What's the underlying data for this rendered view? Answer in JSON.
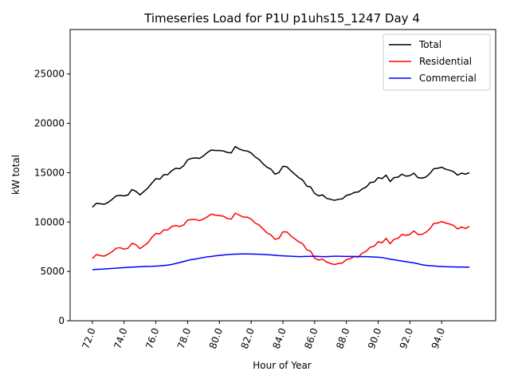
{
  "chart_data": {
    "type": "line",
    "title": "Timeseries Load for P1U p1uhs15_1247  Day 4",
    "xlabel": "Hour of Year",
    "ylabel": "kW total",
    "xlim": [
      70.6,
      97.4
    ],
    "ylim": [
      0,
      29500
    ],
    "xticks": [
      72,
      74,
      76,
      78,
      80,
      82,
      84,
      86,
      88,
      90,
      92,
      94
    ],
    "xtick_labels": [
      "72.0",
      "74.0",
      "76.0",
      "78.0",
      "80.0",
      "82.0",
      "84.0",
      "86.0",
      "88.0",
      "90.0",
      "92.0",
      "94.0"
    ],
    "yticks": [
      0,
      5000,
      10000,
      15000,
      20000,
      25000
    ],
    "ytick_labels": [
      "0",
      "5000",
      "10000",
      "15000",
      "20000",
      "25000"
    ],
    "grid": false,
    "legend_position": "top-right",
    "x": [
      72.0,
      72.25,
      72.5,
      72.75,
      73.0,
      73.25,
      73.5,
      73.75,
      74.0,
      74.25,
      74.5,
      74.75,
      75.0,
      75.25,
      75.5,
      75.75,
      76.0,
      76.25,
      76.5,
      76.75,
      77.0,
      77.25,
      77.5,
      77.75,
      78.0,
      78.25,
      78.5,
      78.75,
      79.0,
      79.25,
      79.5,
      79.75,
      80.0,
      80.25,
      80.5,
      80.75,
      81.0,
      81.25,
      81.5,
      81.75,
      82.0,
      82.25,
      82.5,
      82.75,
      83.0,
      83.25,
      83.5,
      83.75,
      84.0,
      84.25,
      84.5,
      84.75,
      85.0,
      85.25,
      85.5,
      85.75,
      86.0,
      86.25,
      86.5,
      86.75,
      87.0,
      87.25,
      87.5,
      87.75,
      88.0,
      88.25,
      88.5,
      88.75,
      89.0,
      89.25,
      89.5,
      89.75,
      90.0,
      90.25,
      90.5,
      90.75,
      91.0,
      91.25,
      91.5,
      91.75,
      92.0,
      92.25,
      92.5,
      92.75,
      93.0,
      93.25,
      93.5,
      93.75,
      94.0,
      94.25,
      94.5,
      94.75,
      95.0,
      95.25,
      95.5,
      95.75
    ],
    "series": [
      {
        "name": "Total",
        "color": "#000000",
        "values": [
          11500,
          11900,
          11850,
          11800,
          12000,
          12300,
          12650,
          12700,
          12650,
          12750,
          13300,
          13100,
          12750,
          13100,
          13450,
          13950,
          14400,
          14350,
          14800,
          14800,
          15200,
          15450,
          15400,
          15700,
          16300,
          16450,
          16500,
          16450,
          16700,
          17050,
          17300,
          17250,
          17250,
          17200,
          17050,
          17000,
          17650,
          17400,
          17250,
          17200,
          17000,
          16600,
          16350,
          15900,
          15550,
          15350,
          14850,
          15000,
          15650,
          15600,
          15200,
          14850,
          14500,
          14250,
          13650,
          13550,
          12900,
          12650,
          12750,
          12400,
          12300,
          12200,
          12300,
          12350,
          12700,
          12800,
          13000,
          13050,
          13350,
          13550,
          14000,
          14050,
          14500,
          14400,
          14750,
          14100,
          14500,
          14550,
          14850,
          14650,
          14700,
          14950,
          14500,
          14450,
          14550,
          14900,
          15400,
          15450,
          15550,
          15350,
          15250,
          15100,
          14750,
          14950,
          14850,
          15000
        ]
      },
      {
        "name": "Residential",
        "color": "#ff0000",
        "values": [
          6300,
          6700,
          6600,
          6550,
          6750,
          7000,
          7350,
          7400,
          7250,
          7350,
          7850,
          7700,
          7300,
          7600,
          7900,
          8450,
          8850,
          8800,
          9200,
          9200,
          9550,
          9650,
          9550,
          9700,
          10200,
          10250,
          10250,
          10150,
          10300,
          10550,
          10800,
          10700,
          10650,
          10600,
          10350,
          10300,
          10900,
          10700,
          10500,
          10500,
          10300,
          9900,
          9700,
          9300,
          8900,
          8700,
          8250,
          8350,
          9000,
          9000,
          8600,
          8300,
          8000,
          7800,
          7200,
          7050,
          6350,
          6150,
          6250,
          5950,
          5800,
          5700,
          5800,
          5850,
          6200,
          6300,
          6500,
          6450,
          6850,
          7050,
          7450,
          7550,
          8000,
          7900,
          8350,
          7800,
          8250,
          8350,
          8750,
          8650,
          8750,
          9100,
          8750,
          8750,
          8950,
          9300,
          9850,
          9900,
          10050,
          9900,
          9800,
          9650,
          9300,
          9500,
          9350,
          9550
        ]
      },
      {
        "name": "Commercial",
        "color": "#0000ff",
        "values": [
          5180,
          5200,
          5220,
          5240,
          5270,
          5300,
          5320,
          5350,
          5380,
          5410,
          5440,
          5460,
          5480,
          5500,
          5510,
          5520,
          5540,
          5560,
          5600,
          5640,
          5710,
          5800,
          5900,
          6000,
          6100,
          6200,
          6250,
          6330,
          6400,
          6480,
          6520,
          6580,
          6620,
          6660,
          6700,
          6730,
          6750,
          6760,
          6770,
          6770,
          6760,
          6750,
          6740,
          6720,
          6700,
          6670,
          6640,
          6600,
          6580,
          6560,
          6540,
          6520,
          6500,
          6510,
          6520,
          6530,
          6540,
          6520,
          6500,
          6500,
          6520,
          6540,
          6540,
          6530,
          6520,
          6520,
          6520,
          6510,
          6500,
          6500,
          6480,
          6460,
          6440,
          6400,
          6320,
          6240,
          6180,
          6100,
          6050,
          5980,
          5920,
          5860,
          5780,
          5680,
          5620,
          5580,
          5560,
          5520,
          5500,
          5480,
          5470,
          5460,
          5450,
          5450,
          5440,
          5440
        ]
      }
    ]
  }
}
